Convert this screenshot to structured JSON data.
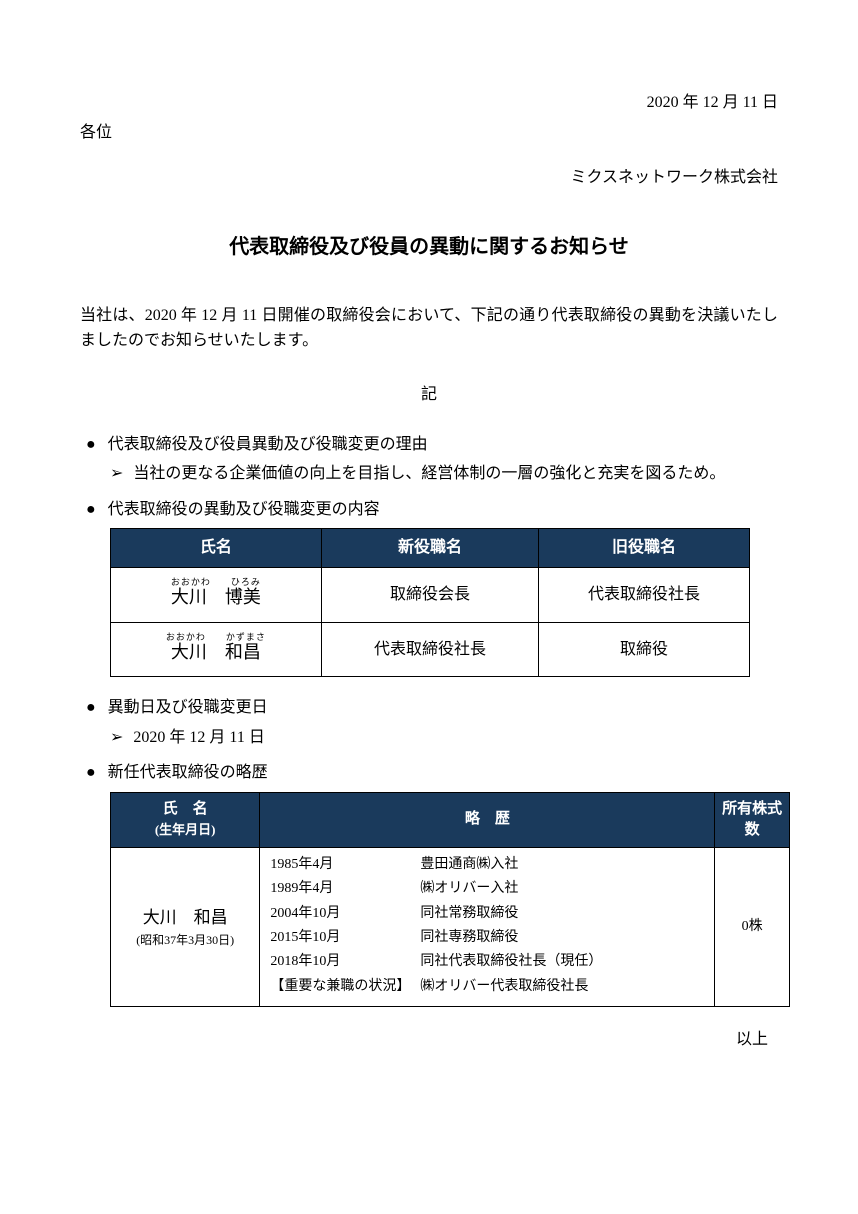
{
  "header": {
    "date": "2020 年 12 月 11 日",
    "salutation": "各位",
    "company": "ミクスネットワーク株式会社"
  },
  "title": "代表取締役及び役員の異動に関するお知らせ",
  "intro": "当社は、2020 年 12 月 11 日開催の取締役会において、下記の通り代表取締役の異動を決議いたしましたのでお知らせいたします。",
  "divider": "記",
  "section1": {
    "heading": "代表取締役及び役員異動及び役職変更の理由",
    "reason": "当社の更なる企業価値の向上を目指し、経営体制の一層の強化と充実を図るため。"
  },
  "section2": {
    "heading": "代表取締役の異動及び役職変更の内容",
    "table": {
      "header_bg": "#1a3a5c",
      "header_color": "#ffffff",
      "cols": [
        "氏名",
        "新役職名",
        "旧役職名"
      ],
      "rows": [
        {
          "name_ruby": "おおかわ　　ひろみ",
          "name": "大川　博美",
          "new": "取締役会長",
          "old": "代表取締役社長"
        },
        {
          "name_ruby": "おおかわ　　かずまさ",
          "name": "大川　和昌",
          "new": "代表取締役社長",
          "old": "取締役"
        }
      ]
    }
  },
  "section3": {
    "heading": "異動日及び役職変更日",
    "date": "2020 年 12 月 11 日"
  },
  "section4": {
    "heading": "新任代表取締役の略歴",
    "table": {
      "header_bg": "#1a3a5c",
      "header_color": "#ffffff",
      "col_name": "氏　名",
      "col_name_sub": "(生年月日)",
      "col_history": "略　歴",
      "col_shares": "所有株式数",
      "person": {
        "name": "大川　和昌",
        "birth": "(昭和37年3月30日)",
        "history": [
          {
            "date": "1985年4月",
            "body": "豊田通商㈱入社"
          },
          {
            "date": "1989年4月",
            "body": "㈱オリバー入社"
          },
          {
            "date": "2004年10月",
            "body": "同社常務取締役"
          },
          {
            "date": "2015年10月",
            "body": "同社専務取締役"
          },
          {
            "date": "2018年10月",
            "body": "同社代表取締役社長（現任）"
          },
          {
            "date": "【重要な兼職の状況】",
            "body": "㈱オリバー代表取締役社長"
          }
        ],
        "shares": "0株"
      }
    }
  },
  "closing": "以上",
  "bullets": {
    "dot": "●",
    "arrow": "➢"
  }
}
